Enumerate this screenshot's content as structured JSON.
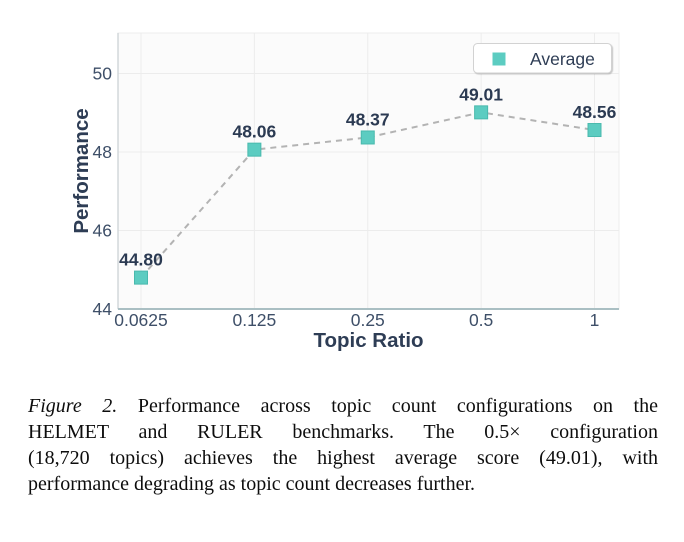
{
  "chart_data": {
    "type": "line",
    "title": "",
    "xlabel": "Topic Ratio",
    "ylabel": "Performance",
    "x_scale": "log2",
    "x": [
      0.0625,
      0.125,
      0.25,
      0.5,
      1
    ],
    "x_tick_labels": [
      "0.0625",
      "0.125",
      "0.25",
      "0.5",
      "1"
    ],
    "y_ticks": [
      44,
      46,
      48,
      50
    ],
    "ylim": [
      44,
      51
    ],
    "grid": true,
    "line_dash": "dashed",
    "marker_shape": "square",
    "legend_position": "top-right",
    "series": [
      {
        "name": "Average",
        "values": [
          44.8,
          48.06,
          48.37,
          49.01,
          48.56
        ],
        "labels": [
          "44.80",
          "48.06",
          "48.37",
          "49.01",
          "48.56"
        ]
      }
    ],
    "colors": {
      "marker": "#5cccc1",
      "marker_border": "#49b9ad",
      "line": "#b3b3b3",
      "tick_label": "#3e4f68",
      "axis_title": "#2e3d55",
      "data_label": "#2b3a52",
      "grid": "#ececec",
      "plot_background": "#fbfbfb",
      "plot_border": "#ececec",
      "axis_line_left": "#cfd5d8",
      "axis_line_bottom": "#aabfc3",
      "legend_border": "#d2d2d2",
      "legend_background": "#ffffff"
    }
  },
  "caption": {
    "figure_label": "Figure 2.",
    "line1_rest": " Performance across topic count configurations on the",
    "line2": "HELMET and RULER benchmarks.  The 0.5× configuration",
    "line3": "(18,720 topics) achieves the highest average score (49.01), with",
    "line4": "performance degrading as topic count decreases further."
  }
}
